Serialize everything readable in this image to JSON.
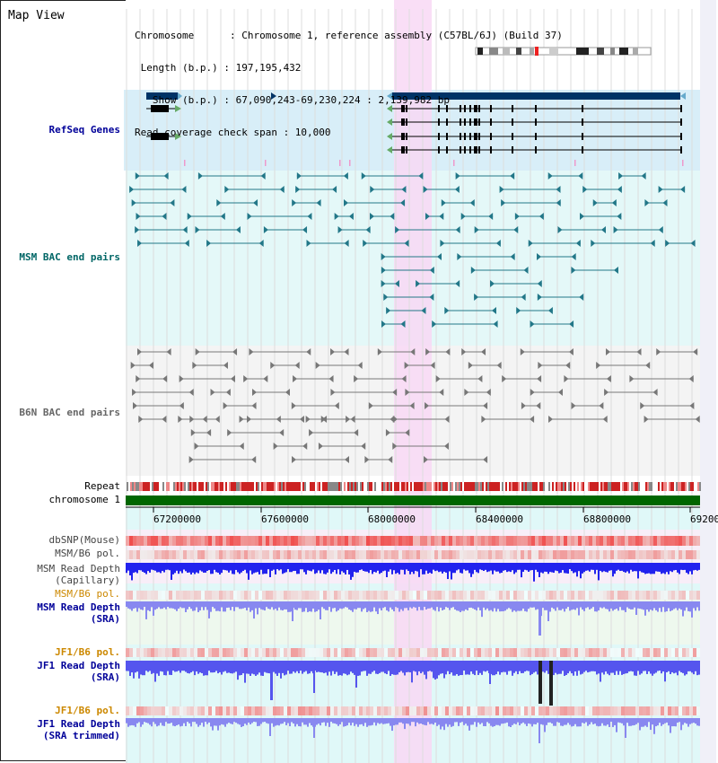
{
  "title": "Map View",
  "info": {
    "chromosome_line": "Chromosome      : Chromosome 1, reference assembly (C57BL/6J) (Build 37)",
    "length_line": " Length (b.p.) : 197,195,432",
    "show_line": "   Show (b.p.) : 67,090,243-69,230,224 : 2,139,982 bp",
    "coverage_line": "Read coverage check span : 10,000"
  },
  "tracks": {
    "refseq": "RefSeq Genes",
    "msm_bac": "MSM BAC end pairs",
    "b6n_bac": "B6N BAC end pairs",
    "repeat": "Repeat",
    "chromosome": "chromosome 1",
    "dbsnp": "dbSNP(Mouse)",
    "msm_b6_pol_1": "MSM/B6 pol.",
    "msm_depth_cap_1": "MSM Read Depth",
    "msm_depth_cap_2": "(Capillary)",
    "msm_b6_pol_2": "MSM/B6 pol.",
    "msm_depth_sra_1": "MSM Read Depth",
    "msm_depth_sra_2": "(SRA)",
    "jf1_b6_pol_1": "JF1/B6 pol.",
    "jf1_depth_sra_1": "JF1 Read Depth",
    "jf1_depth_sra_2": "(SRA)",
    "jf1_b6_pol_2": "JF1/B6 pol.",
    "jf1_depth_trim_1": "JF1 Read Depth",
    "jf1_depth_trim_2": "(SRA trimmed)"
  },
  "axis_ticks": [
    "67200000",
    "67600000",
    "68000000",
    "68400000",
    "68800000",
    "69200"
  ],
  "colors": {
    "refseq_label": "#000099",
    "msm_bac_label": "#006666",
    "b6n_bac_label": "#666666",
    "pol_label_orange": "#cc8800",
    "depth_label_blue": "#000099",
    "highlight": "#f8d8f4",
    "chromosome_bar": "#006600",
    "depth_bar": "#3333ee",
    "sra_bar": "#8888f0"
  }
}
